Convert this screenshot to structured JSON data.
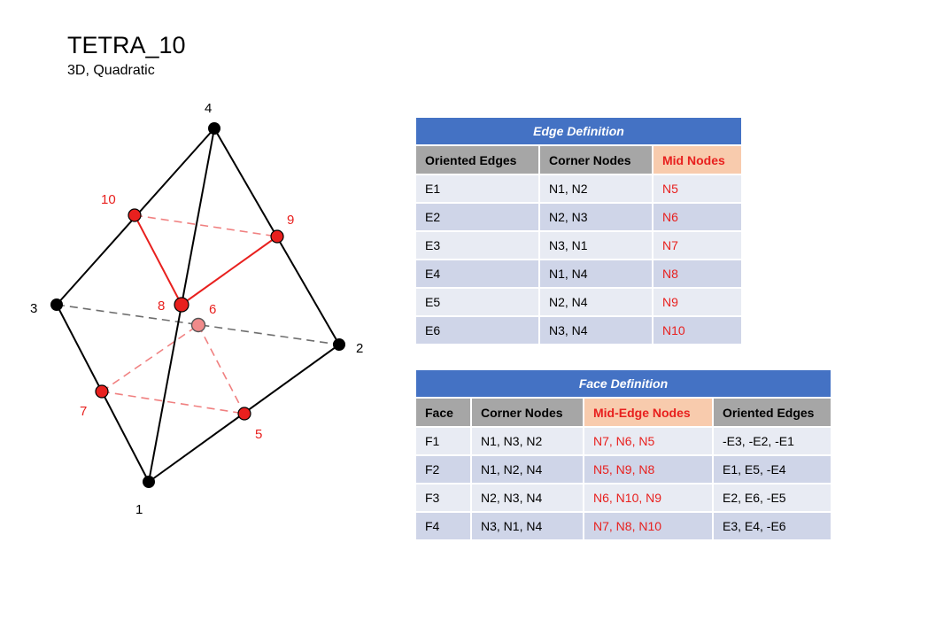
{
  "title": "TETRA_10",
  "subtitle": "3D, Quadratic",
  "colors": {
    "accent_red": "#e8201e",
    "header_blue": "#4472c4",
    "col_gray": "#a6a6a6",
    "mid_peach": "#f8cbad"
  },
  "diagram": {
    "corner_nodes": [
      {
        "id": "1",
        "label": "1"
      },
      {
        "id": "2",
        "label": "2"
      },
      {
        "id": "3",
        "label": "3"
      },
      {
        "id": "4",
        "label": "4"
      }
    ],
    "mid_nodes": [
      {
        "id": "5",
        "label": "5"
      },
      {
        "id": "6",
        "label": "6"
      },
      {
        "id": "7",
        "label": "7"
      },
      {
        "id": "8",
        "label": "8"
      },
      {
        "id": "9",
        "label": "9"
      },
      {
        "id": "10",
        "label": "10"
      }
    ]
  },
  "edge_table": {
    "title": "Edge Definition",
    "headers": [
      "Oriented Edges",
      "Corner Nodes",
      "Mid Nodes"
    ],
    "rows": [
      [
        "E1",
        "N1, N2",
        "N5"
      ],
      [
        "E2",
        "N2, N3",
        "N6"
      ],
      [
        "E3",
        "N3, N1",
        "N7"
      ],
      [
        "E4",
        "N1, N4",
        "N8"
      ],
      [
        "E5",
        "N2, N4",
        "N9"
      ],
      [
        "E6",
        "N3, N4",
        "N10"
      ]
    ]
  },
  "face_table": {
    "title": "Face Definition",
    "headers": [
      "Face",
      "Corner Nodes",
      "Mid-Edge Nodes",
      "Oriented Edges"
    ],
    "rows": [
      [
        "F1",
        "N1, N3, N2",
        "N7, N6, N5",
        "-E3, -E2, -E1"
      ],
      [
        "F2",
        "N1, N2, N4",
        "N5, N9, N8",
        "E1, E5, -E4"
      ],
      [
        "F3",
        "N2, N3, N4",
        "N6, N10, N9",
        "E2, E6, -E5"
      ],
      [
        "F4",
        "N3, N1, N4",
        "N7, N8, N10",
        "E3, E4, -E6"
      ]
    ]
  }
}
